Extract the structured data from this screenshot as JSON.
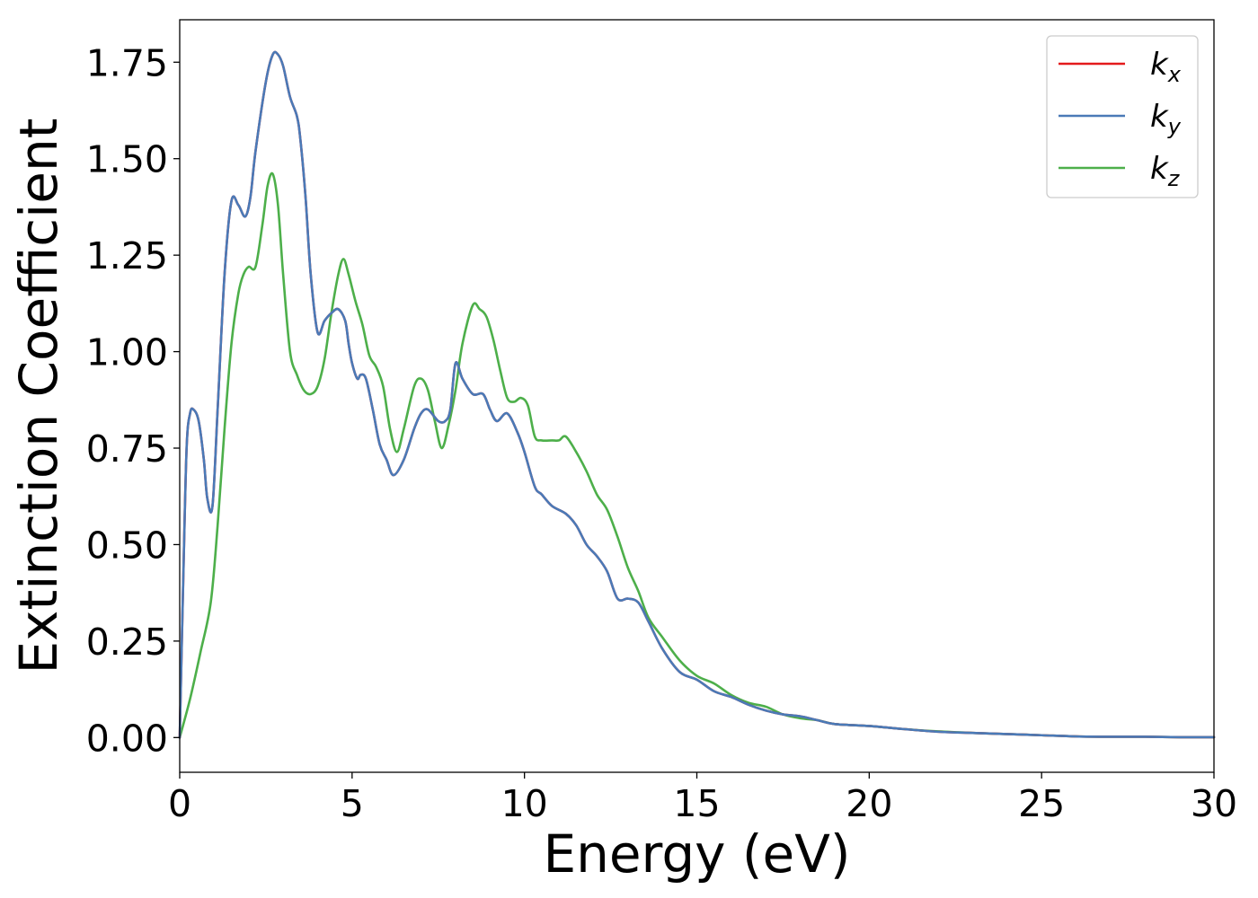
{
  "chart_data": {
    "type": "line",
    "xlabel": "Energy (eV)",
    "ylabel": "Extinction Coefficient",
    "xlim": [
      0,
      30
    ],
    "ylim": [
      -0.09,
      1.86
    ],
    "xticks": [
      0,
      5,
      10,
      15,
      20,
      25,
      30
    ],
    "xtick_labels": [
      "0",
      "5",
      "10",
      "15",
      "20",
      "25",
      "30"
    ],
    "yticks": [
      0,
      0.25,
      0.5,
      0.75,
      1.0,
      1.25,
      1.5,
      1.75
    ],
    "ytick_labels": [
      "0.00",
      "0.25",
      "0.50",
      "0.75",
      "1.00",
      "1.25",
      "1.50",
      "1.75"
    ],
    "grid": false,
    "legend_position": "top-right",
    "series": [
      {
        "name": "k_x",
        "legend_base": "k",
        "legend_sub": "x",
        "color": "#e41a1c",
        "x": [
          0,
          0.1,
          0.2,
          0.3,
          0.4,
          0.55,
          0.7,
          0.8,
          0.95,
          1.1,
          1.3,
          1.5,
          1.7,
          1.9,
          2.05,
          2.2,
          2.5,
          2.7,
          2.85,
          3.0,
          3.2,
          3.4,
          3.5,
          3.65,
          3.8,
          4.0,
          4.2,
          4.4,
          4.6,
          4.8,
          4.9,
          5.0,
          5.15,
          5.25,
          5.4,
          5.6,
          5.8,
          6.0,
          6.2,
          6.5,
          6.8,
          7.0,
          7.2,
          7.5,
          7.7,
          7.85,
          8.0,
          8.2,
          8.5,
          8.8,
          9.0,
          9.2,
          9.5,
          9.8,
          10.0,
          10.3,
          10.5,
          10.8,
          11.2,
          11.5,
          11.8,
          12.1,
          12.4,
          12.7,
          13.0,
          13.3,
          13.6,
          14.0,
          14.5,
          15.0,
          15.5,
          16.0,
          16.5,
          17.0,
          17.5,
          18.0,
          18.5,
          19.0,
          20.0,
          21.0,
          22.0,
          23.0,
          24.0,
          25.0,
          26.0,
          27.0,
          28.0,
          29.0,
          30.0
        ],
        "y": [
          0.0,
          0.4,
          0.75,
          0.84,
          0.85,
          0.82,
          0.72,
          0.62,
          0.6,
          0.85,
          1.2,
          1.39,
          1.38,
          1.35,
          1.4,
          1.52,
          1.7,
          1.77,
          1.77,
          1.74,
          1.66,
          1.61,
          1.55,
          1.4,
          1.2,
          1.05,
          1.08,
          1.1,
          1.11,
          1.08,
          1.02,
          0.97,
          0.93,
          0.94,
          0.93,
          0.85,
          0.76,
          0.72,
          0.68,
          0.72,
          0.8,
          0.84,
          0.85,
          0.82,
          0.82,
          0.85,
          0.97,
          0.93,
          0.89,
          0.89,
          0.85,
          0.82,
          0.84,
          0.79,
          0.74,
          0.65,
          0.63,
          0.6,
          0.58,
          0.55,
          0.5,
          0.47,
          0.43,
          0.36,
          0.36,
          0.35,
          0.3,
          0.23,
          0.17,
          0.15,
          0.12,
          0.105,
          0.085,
          0.07,
          0.06,
          0.055,
          0.045,
          0.035,
          0.03,
          0.022,
          0.015,
          0.012,
          0.009,
          0.006,
          0.003,
          0.002,
          0.002,
          0.001,
          0.001
        ]
      },
      {
        "name": "k_y",
        "legend_base": "k",
        "legend_sub": "y",
        "color": "#4a7ab7",
        "x": [
          0,
          0.1,
          0.2,
          0.3,
          0.4,
          0.55,
          0.7,
          0.8,
          0.95,
          1.1,
          1.3,
          1.5,
          1.7,
          1.9,
          2.05,
          2.2,
          2.5,
          2.7,
          2.85,
          3.0,
          3.2,
          3.4,
          3.5,
          3.65,
          3.8,
          4.0,
          4.2,
          4.4,
          4.6,
          4.8,
          4.9,
          5.0,
          5.15,
          5.25,
          5.4,
          5.6,
          5.8,
          6.0,
          6.2,
          6.5,
          6.8,
          7.0,
          7.2,
          7.5,
          7.7,
          7.85,
          8.0,
          8.2,
          8.5,
          8.8,
          9.0,
          9.2,
          9.5,
          9.8,
          10.0,
          10.3,
          10.5,
          10.8,
          11.2,
          11.5,
          11.8,
          12.1,
          12.4,
          12.7,
          13.0,
          13.3,
          13.6,
          14.0,
          14.5,
          15.0,
          15.5,
          16.0,
          16.5,
          17.0,
          17.5,
          18.0,
          18.5,
          19.0,
          20.0,
          21.0,
          22.0,
          23.0,
          24.0,
          25.0,
          26.0,
          27.0,
          28.0,
          29.0,
          30.0
        ],
        "y": [
          0.0,
          0.4,
          0.75,
          0.84,
          0.85,
          0.82,
          0.72,
          0.62,
          0.6,
          0.85,
          1.2,
          1.39,
          1.38,
          1.35,
          1.4,
          1.52,
          1.7,
          1.77,
          1.77,
          1.74,
          1.66,
          1.61,
          1.55,
          1.4,
          1.2,
          1.05,
          1.08,
          1.1,
          1.11,
          1.08,
          1.02,
          0.97,
          0.93,
          0.94,
          0.93,
          0.85,
          0.76,
          0.72,
          0.68,
          0.72,
          0.8,
          0.84,
          0.85,
          0.82,
          0.82,
          0.85,
          0.97,
          0.93,
          0.89,
          0.89,
          0.85,
          0.82,
          0.84,
          0.79,
          0.74,
          0.65,
          0.63,
          0.6,
          0.58,
          0.55,
          0.5,
          0.47,
          0.43,
          0.36,
          0.36,
          0.35,
          0.3,
          0.23,
          0.17,
          0.15,
          0.12,
          0.105,
          0.085,
          0.07,
          0.06,
          0.055,
          0.045,
          0.035,
          0.03,
          0.022,
          0.015,
          0.012,
          0.009,
          0.006,
          0.003,
          0.002,
          0.002,
          0.001,
          0.001
        ]
      },
      {
        "name": "k_z",
        "legend_base": "k",
        "legend_sub": "z",
        "color": "#4daf4a",
        "x": [
          0,
          0.3,
          0.6,
          0.9,
          1.1,
          1.3,
          1.5,
          1.7,
          1.85,
          2.0,
          2.2,
          2.4,
          2.55,
          2.7,
          2.85,
          3.0,
          3.2,
          3.4,
          3.6,
          3.8,
          4.0,
          4.2,
          4.4,
          4.6,
          4.75,
          4.9,
          5.1,
          5.3,
          5.5,
          5.7,
          5.9,
          6.1,
          6.3,
          6.5,
          6.8,
          7.0,
          7.2,
          7.4,
          7.6,
          7.8,
          8.0,
          8.2,
          8.5,
          8.7,
          8.9,
          9.1,
          9.3,
          9.5,
          9.7,
          9.9,
          10.1,
          10.3,
          10.5,
          10.8,
          11.0,
          11.2,
          11.5,
          11.8,
          12.1,
          12.4,
          12.7,
          13.0,
          13.3,
          13.6,
          14.0,
          14.5,
          15.0,
          15.5,
          16.0,
          16.5,
          17.0,
          17.5,
          18.0,
          18.5,
          19.0,
          20.0,
          21.0,
          22.0,
          23.0,
          24.0,
          25.0,
          26.0,
          27.0,
          28.0,
          29.0,
          30.0
        ],
        "y": [
          0.0,
          0.1,
          0.22,
          0.35,
          0.55,
          0.8,
          1.02,
          1.15,
          1.2,
          1.22,
          1.22,
          1.33,
          1.43,
          1.46,
          1.38,
          1.2,
          1.0,
          0.94,
          0.9,
          0.89,
          0.91,
          0.98,
          1.1,
          1.2,
          1.24,
          1.2,
          1.13,
          1.07,
          0.99,
          0.96,
          0.91,
          0.8,
          0.74,
          0.8,
          0.91,
          0.93,
          0.9,
          0.82,
          0.75,
          0.81,
          0.9,
          1.02,
          1.12,
          1.11,
          1.09,
          1.03,
          0.95,
          0.88,
          0.87,
          0.88,
          0.86,
          0.78,
          0.77,
          0.77,
          0.77,
          0.78,
          0.74,
          0.69,
          0.63,
          0.59,
          0.52,
          0.44,
          0.38,
          0.31,
          0.26,
          0.2,
          0.16,
          0.14,
          0.11,
          0.09,
          0.08,
          0.06,
          0.05,
          0.045,
          0.035,
          0.03,
          0.022,
          0.016,
          0.012,
          0.009,
          0.006,
          0.003,
          0.002,
          0.002,
          0.001,
          0.001
        ]
      }
    ]
  }
}
